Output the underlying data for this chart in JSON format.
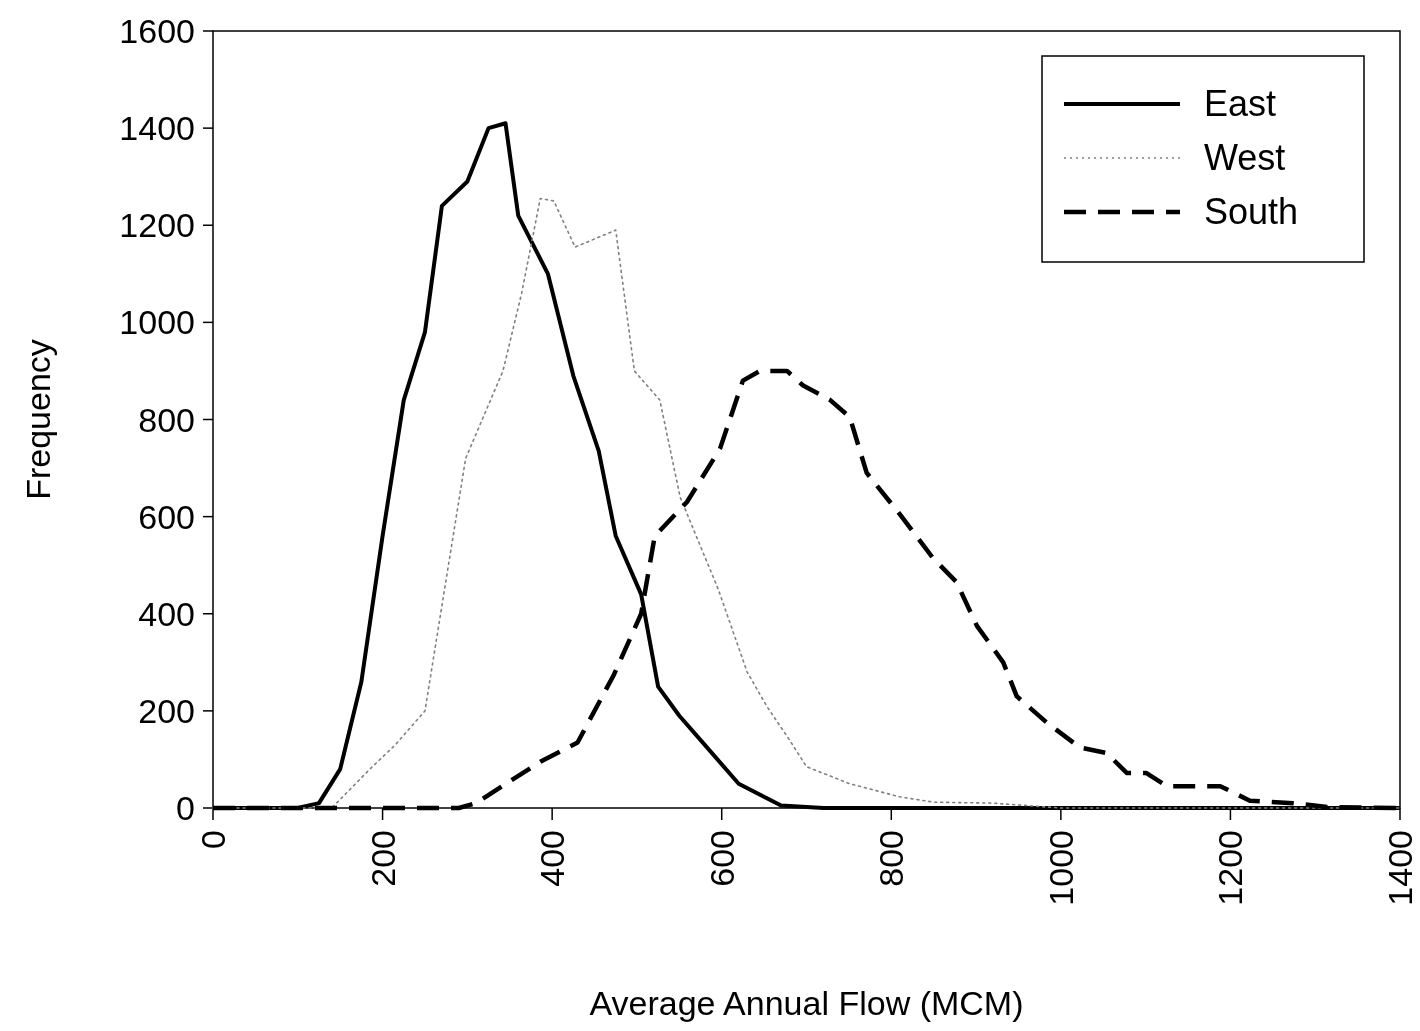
{
  "chart_data": {
    "type": "line",
    "xlabel": "Average Annual Flow (MCM)",
    "ylabel": "Frequency",
    "xlim": [
      0,
      1400
    ],
    "xticks": [
      0,
      200,
      400,
      600,
      800,
      1000,
      1200,
      1400
    ],
    "ylim": [
      0,
      1600
    ],
    "yticks": [
      0,
      200,
      400,
      600,
      800,
      1000,
      1200,
      1400,
      1600
    ],
    "grid": false,
    "legend": "top right",
    "marker": "none",
    "series": [
      {
        "name": "East",
        "color": "#000000",
        "line_style": "solid",
        "x": [
          0,
          100,
          125,
          150,
          175,
          200,
          225,
          250,
          270,
          300,
          325,
          345,
          360,
          395,
          425,
          455,
          475,
          505,
          525,
          550,
          580,
          620,
          670,
          720,
          1400
        ],
        "values": [
          0,
          0,
          10,
          80,
          260,
          560,
          840,
          980,
          1240,
          1290,
          1400,
          1410,
          1220,
          1100,
          890,
          735,
          560,
          440,
          250,
          190,
          130,
          50,
          5,
          0,
          0
        ]
      },
      {
        "name": "West",
        "color": "#808080",
        "line_style": "dotted",
        "x": [
          0,
          140,
          185,
          215,
          250,
          298,
          342,
          364,
          386,
          402,
          427,
          475,
          497,
          527,
          551,
          596,
          630,
          653,
          680,
          700,
          751,
          810,
          850,
          920,
          1000,
          1400
        ],
        "values": [
          0,
          0,
          80,
          130,
          200,
          720,
          900,
          1060,
          1255,
          1250,
          1155,
          1190,
          900,
          840,
          640,
          450,
          280,
          210,
          140,
          85,
          50,
          23,
          12,
          10,
          0,
          0
        ]
      },
      {
        "name": "South",
        "color": "#000000",
        "line_style": "dashed",
        "x": [
          0,
          290,
          310,
          386,
          430,
          473,
          505,
          521,
          559,
          598,
          625,
          645,
          677,
          696,
          728,
          751,
          771,
          810,
          849,
          877,
          901,
          932,
          948,
          984,
          1022,
          1054,
          1078,
          1101,
          1125,
          1188,
          1223,
          1274,
          1314,
          1400
        ],
        "values": [
          0,
          0,
          10,
          95,
          135,
          275,
          400,
          560,
          630,
          740,
          880,
          900,
          900,
          870,
          840,
          805,
          690,
          605,
          515,
          465,
          375,
          300,
          230,
          175,
          125,
          113,
          72,
          72,
          45,
          45,
          15,
          10,
          2,
          0
        ]
      }
    ]
  }
}
